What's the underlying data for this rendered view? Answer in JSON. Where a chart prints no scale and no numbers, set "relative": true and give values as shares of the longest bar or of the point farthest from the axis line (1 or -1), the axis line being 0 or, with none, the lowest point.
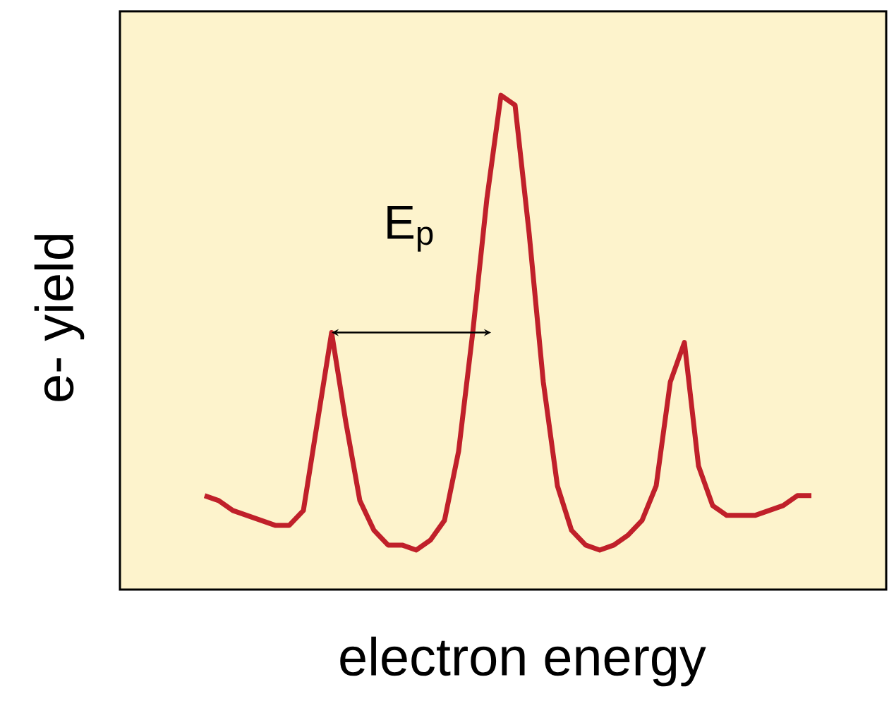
{
  "chart_data": {
    "type": "line",
    "relative": true,
    "xlabel": "electron energy",
    "ylabel": "e- yield",
    "annotations": [
      "E$_{p}$"
    ],
    "color": "#c0202a",
    "categories": [
      null,
      null,
      null,
      null,
      null,
      null,
      null,
      null,
      null,
      null,
      null,
      null,
      null,
      null,
      null,
      null,
      null,
      null,
      null,
      null,
      null,
      null,
      null,
      null,
      null,
      null,
      null,
      null,
      null,
      null,
      null,
      null,
      null,
      null,
      null,
      null,
      null,
      null,
      null,
      null,
      null,
      null,
      null,
      null
    ],
    "values": [
      0.19,
      0.18,
      0.16,
      0.15,
      0.14,
      0.13,
      0.13,
      0.16,
      0.34,
      0.52,
      0.34,
      0.18,
      0.12,
      0.09,
      0.09,
      0.08,
      0.1,
      0.14,
      0.28,
      0.52,
      0.79,
      1,
      0.98,
      0.72,
      0.42,
      0.21,
      0.12,
      0.09,
      0.08,
      0.09,
      0.11,
      0.14,
      0.21,
      0.42,
      0.5,
      0.25,
      0.17,
      0.15,
      0.15,
      0.15,
      0.16,
      0.17,
      0.19,
      0.19
    ]
  }
}
